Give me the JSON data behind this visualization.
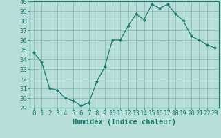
{
  "x": [
    0,
    1,
    2,
    3,
    4,
    5,
    6,
    7,
    8,
    9,
    10,
    11,
    12,
    13,
    14,
    15,
    16,
    17,
    18,
    19,
    20,
    21,
    22,
    23
  ],
  "y": [
    34.7,
    33.7,
    31.0,
    30.8,
    30.0,
    29.7,
    29.2,
    29.5,
    31.7,
    33.2,
    36.0,
    36.0,
    37.5,
    38.7,
    38.1,
    39.7,
    39.3,
    39.7,
    38.7,
    38.0,
    36.4,
    36.0,
    35.5,
    35.2
  ],
  "line_color": "#1a7a6e",
  "marker": "D",
  "marker_size": 2,
  "bg_color": "#b8deda",
  "grid_color": "#8cbcb8",
  "xlabel": "Humidex (Indice chaleur)",
  "ylim": [
    29,
    40
  ],
  "xlim": [
    -0.5,
    23.5
  ],
  "yticks": [
    29,
    30,
    31,
    32,
    33,
    34,
    35,
    36,
    37,
    38,
    39,
    40
  ],
  "xticks": [
    0,
    1,
    2,
    3,
    4,
    5,
    6,
    7,
    8,
    9,
    10,
    11,
    12,
    13,
    14,
    15,
    16,
    17,
    18,
    19,
    20,
    21,
    22,
    23
  ],
  "tick_color": "#1a7a6e",
  "label_fontsize": 7.5,
  "tick_fontsize": 6.5
}
